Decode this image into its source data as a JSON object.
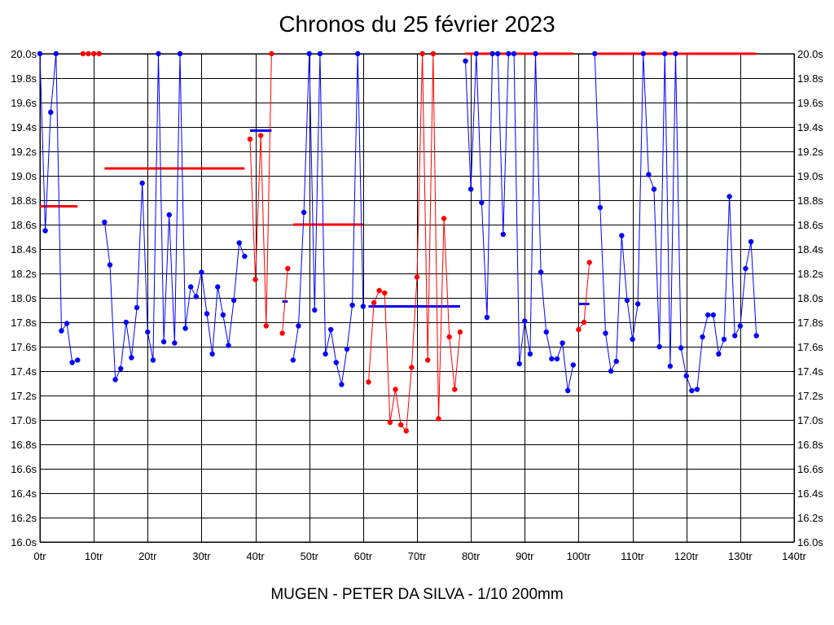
{
  "chart_data": {
    "type": "line",
    "title": "Chronos du 25 février 2023",
    "subtitle": "MUGEN - PETER DA SILVA - 1/10 200mm",
    "xlim": [
      0,
      140
    ],
    "ylim": [
      16.0,
      20.0
    ],
    "grid": true,
    "x_ticks": [
      0,
      10,
      20,
      30,
      40,
      50,
      60,
      70,
      80,
      90,
      100,
      110,
      120,
      130,
      140
    ],
    "x_tick_labels": [
      "0tr",
      "10tr",
      "20tr",
      "30tr",
      "40tr",
      "50tr",
      "60tr",
      "70tr",
      "80tr",
      "90tr",
      "100tr",
      "110tr",
      "120tr",
      "130tr",
      "140tr"
    ],
    "y_ticks": [
      16.0,
      16.2,
      16.4,
      16.6,
      16.8,
      17.0,
      17.2,
      17.4,
      17.6,
      17.8,
      18.0,
      18.2,
      18.4,
      18.6,
      18.8,
      19.0,
      19.2,
      19.4,
      19.6,
      19.8,
      20.0
    ],
    "y_tick_labels": [
      "16.0s",
      "16.2s",
      "16.4s",
      "16.6s",
      "16.8s",
      "17.0s",
      "17.2s",
      "17.4s",
      "17.6s",
      "17.8s",
      "18.0s",
      "18.2s",
      "18.4s",
      "18.6s",
      "18.8s",
      "19.0s",
      "19.2s",
      "19.4s",
      "19.6s",
      "19.8s",
      "20.0s"
    ],
    "colors": {
      "blue": "#0000ff",
      "red": "#ff0000",
      "grid": "#000000"
    },
    "series": [
      {
        "color": "#0000ff",
        "points": [
          [
            0,
            20.0
          ],
          [
            1,
            18.55
          ],
          [
            2,
            19.52
          ],
          [
            3,
            20.0
          ],
          [
            4,
            17.73
          ],
          [
            5,
            17.79
          ],
          [
            6,
            17.47
          ],
          [
            7,
            17.49
          ]
        ]
      },
      {
        "color": "#ff0000",
        "points": [
          [
            8,
            20.0
          ],
          [
            9,
            20.0
          ],
          [
            10,
            20.0
          ],
          [
            11,
            20.0
          ]
        ]
      },
      {
        "color": "#0000ff",
        "points": [
          [
            12,
            18.62
          ],
          [
            13,
            18.27
          ],
          [
            14,
            17.33
          ],
          [
            15,
            17.42
          ],
          [
            16,
            17.8
          ],
          [
            17,
            17.51
          ],
          [
            18,
            17.92
          ],
          [
            19,
            18.94
          ],
          [
            20,
            17.72
          ],
          [
            21,
            17.49
          ],
          [
            22,
            20.0
          ],
          [
            23,
            17.64
          ],
          [
            24,
            18.68
          ],
          [
            25,
            17.63
          ],
          [
            26,
            20.0
          ],
          [
            27,
            17.75
          ],
          [
            28,
            18.09
          ],
          [
            29,
            18.01
          ],
          [
            30,
            18.21
          ],
          [
            31,
            17.87
          ],
          [
            32,
            17.54
          ],
          [
            33,
            18.09
          ],
          [
            34,
            17.86
          ],
          [
            35,
            17.61
          ],
          [
            36,
            17.98
          ],
          [
            37,
            18.45
          ],
          [
            38,
            18.34
          ]
        ]
      },
      {
        "color": "#ff0000",
        "points": [
          [
            39,
            19.3
          ],
          [
            40,
            18.15
          ],
          [
            41,
            19.33
          ],
          [
            42,
            17.77
          ],
          [
            43,
            20.0
          ]
        ]
      },
      {
        "color": "#ff0000",
        "points": [
          [
            45,
            17.71
          ],
          [
            46,
            18.24
          ]
        ]
      },
      {
        "color": "#0000ff",
        "points": [
          [
            47,
            17.49
          ],
          [
            48,
            17.77
          ],
          [
            49,
            18.7
          ],
          [
            50,
            20.0
          ],
          [
            51,
            17.9
          ],
          [
            52,
            20.0
          ],
          [
            53,
            17.54
          ],
          [
            54,
            17.74
          ],
          [
            55,
            17.47
          ],
          [
            56,
            17.29
          ],
          [
            57,
            17.58
          ],
          [
            58,
            17.94
          ],
          [
            59,
            20.0
          ],
          [
            60,
            17.93
          ]
        ]
      },
      {
        "color": "#ff0000",
        "points": [
          [
            61,
            17.31
          ],
          [
            62,
            17.96
          ],
          [
            63,
            18.06
          ],
          [
            64,
            18.04
          ],
          [
            65,
            16.98
          ],
          [
            66,
            17.25
          ],
          [
            67,
            16.96
          ],
          [
            68,
            16.91
          ],
          [
            69,
            17.43
          ],
          [
            70,
            18.17
          ],
          [
            71,
            20.0
          ],
          [
            72,
            17.49
          ],
          [
            73,
            20.0
          ],
          [
            74,
            17.01
          ],
          [
            75,
            18.65
          ],
          [
            76,
            17.68
          ],
          [
            77,
            17.25
          ],
          [
            78,
            17.72
          ]
        ]
      },
      {
        "color": "#0000ff",
        "points": [
          [
            79,
            19.94
          ],
          [
            80,
            18.89
          ],
          [
            81,
            20.0
          ],
          [
            82,
            18.78
          ],
          [
            83,
            17.84
          ],
          [
            84,
            20.0
          ],
          [
            85,
            20.0
          ],
          [
            86,
            18.52
          ],
          [
            87,
            20.0
          ],
          [
            88,
            20.0
          ],
          [
            89,
            17.46
          ],
          [
            90,
            17.81
          ],
          [
            91,
            17.54
          ],
          [
            92,
            20.0
          ],
          [
            93,
            18.21
          ],
          [
            94,
            17.72
          ],
          [
            95,
            17.5
          ],
          [
            96,
            17.5
          ],
          [
            97,
            17.63
          ],
          [
            98,
            17.24
          ],
          [
            99,
            17.45
          ]
        ]
      },
      {
        "color": "#ff0000",
        "points": [
          [
            100,
            17.74
          ],
          [
            101,
            17.8
          ],
          [
            102,
            18.29
          ]
        ]
      },
      {
        "color": "#0000ff",
        "points": [
          [
            103,
            20.0
          ],
          [
            104,
            18.74
          ],
          [
            105,
            17.71
          ],
          [
            106,
            17.4
          ],
          [
            107,
            17.48
          ],
          [
            108,
            18.51
          ],
          [
            109,
            17.98
          ],
          [
            110,
            17.66
          ],
          [
            111,
            17.95
          ],
          [
            112,
            20.0
          ],
          [
            113,
            19.01
          ],
          [
            114,
            18.89
          ],
          [
            115,
            17.6
          ],
          [
            116,
            20.0
          ],
          [
            117,
            17.44
          ],
          [
            118,
            20.0
          ],
          [
            119,
            17.59
          ],
          [
            120,
            17.36
          ],
          [
            121,
            17.24
          ],
          [
            122,
            17.25
          ],
          [
            123,
            17.68
          ],
          [
            124,
            17.86
          ],
          [
            125,
            17.86
          ],
          [
            126,
            17.54
          ],
          [
            127,
            17.66
          ],
          [
            128,
            18.83
          ],
          [
            129,
            17.69
          ],
          [
            130,
            17.77
          ],
          [
            131,
            18.24
          ],
          [
            132,
            18.46
          ],
          [
            133,
            17.69
          ]
        ]
      }
    ],
    "averages": [
      {
        "color": "#ff0000",
        "x": [
          0,
          7
        ],
        "y": 18.75
      },
      {
        "color": "#ff0000",
        "x": [
          12,
          38
        ],
        "y": 19.06
      },
      {
        "color": "#0000ff",
        "x": [
          39,
          43
        ],
        "y": 19.37
      },
      {
        "color": "#0000ff",
        "x": [
          45,
          46
        ],
        "y": 17.97
      },
      {
        "color": "#ff0000",
        "x": [
          47,
          60
        ],
        "y": 18.6
      },
      {
        "color": "#0000ff",
        "x": [
          61,
          78
        ],
        "y": 17.93
      },
      {
        "color": "#ff0000",
        "x": [
          79,
          99
        ],
        "y": 20.0
      },
      {
        "color": "#0000ff",
        "x": [
          100,
          102
        ],
        "y": 17.95
      },
      {
        "color": "#ff0000",
        "x": [
          103,
          133
        ],
        "y": 20.0
      }
    ]
  }
}
